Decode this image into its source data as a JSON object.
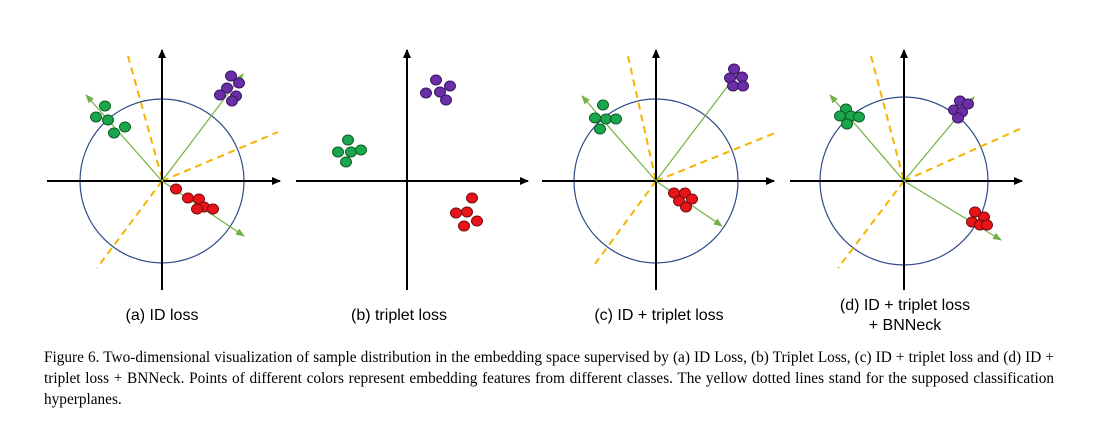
{
  "figure": {
    "panels": [
      {
        "label": "(a) ID loss",
        "has_circle": true
      },
      {
        "label": "(b) triplet loss",
        "has_circle": false
      },
      {
        "label": "(c) ID + triplet loss",
        "has_circle": true
      },
      {
        "label_line1": "(d) ID + triplet loss",
        "label_line2": "+ BNNeck",
        "has_circle": true
      }
    ],
    "colors": {
      "class_green": "#1aa64a",
      "class_purple": "#6a2fa6",
      "class_red": "#e8141a",
      "hyperplane": "#f4b400",
      "arrow": "#72b043",
      "circle": "#2f4a8a",
      "axis": "#000000"
    }
  },
  "caption": {
    "text": "Figure 6. Two-dimensional visualization of sample distribution in the embedding space supervised by (a) ID Loss, (b) Triplet Loss, (c) ID + triplet loss and (d) ID + triplet loss + BNNeck. Points of different colors represent embedding features from different classes. The yellow dotted lines stand for the supposed classification hyperplanes."
  }
}
